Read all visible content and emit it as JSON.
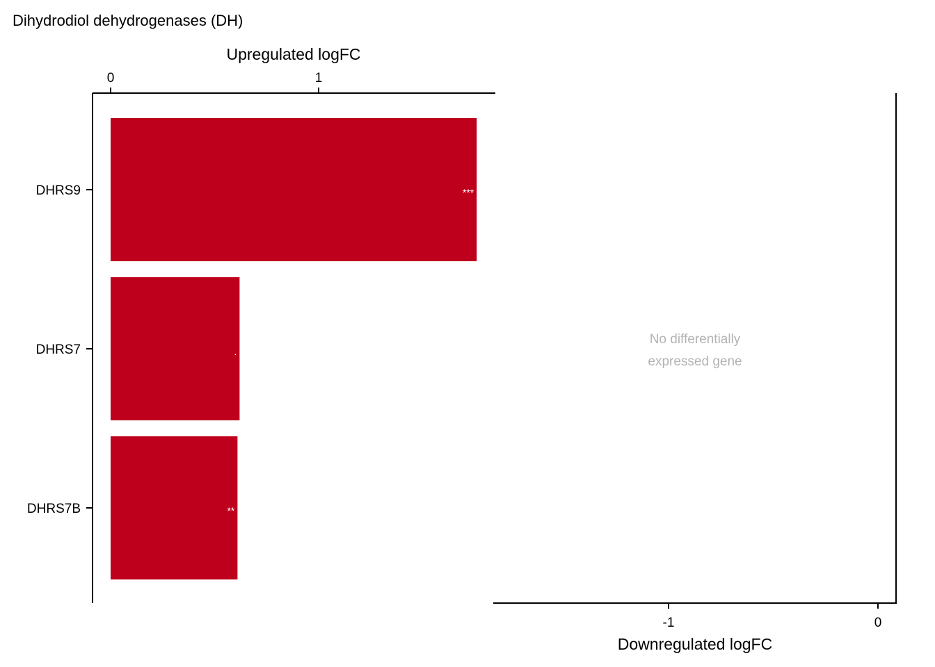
{
  "chart_data": {
    "type": "bar",
    "title": "Dihydrodiol dehydrogenases (DH)",
    "panels": [
      {
        "name": "upregulated",
        "xlabel": "Upregulated logFC",
        "xlim": [
          0,
          1.85
        ],
        "ticks": [
          0,
          1
        ],
        "tick_labels": [
          "0",
          "1"
        ],
        "categories": [
          "DHRS9",
          "DHRS7",
          "DHRS7B"
        ],
        "values": [
          1.76,
          0.62,
          0.61
        ],
        "significance": [
          "***",
          ".",
          "**"
        ],
        "color": "#BE001C"
      },
      {
        "name": "downregulated",
        "xlabel": "Downregulated logFC",
        "xlim": [
          -1.84,
          0.08
        ],
        "ticks": [
          -1,
          0
        ],
        "tick_labels": [
          "-1",
          "0"
        ],
        "categories": [],
        "values": [],
        "note_lines": [
          "No differentially",
          "expressed gene"
        ]
      }
    ]
  }
}
